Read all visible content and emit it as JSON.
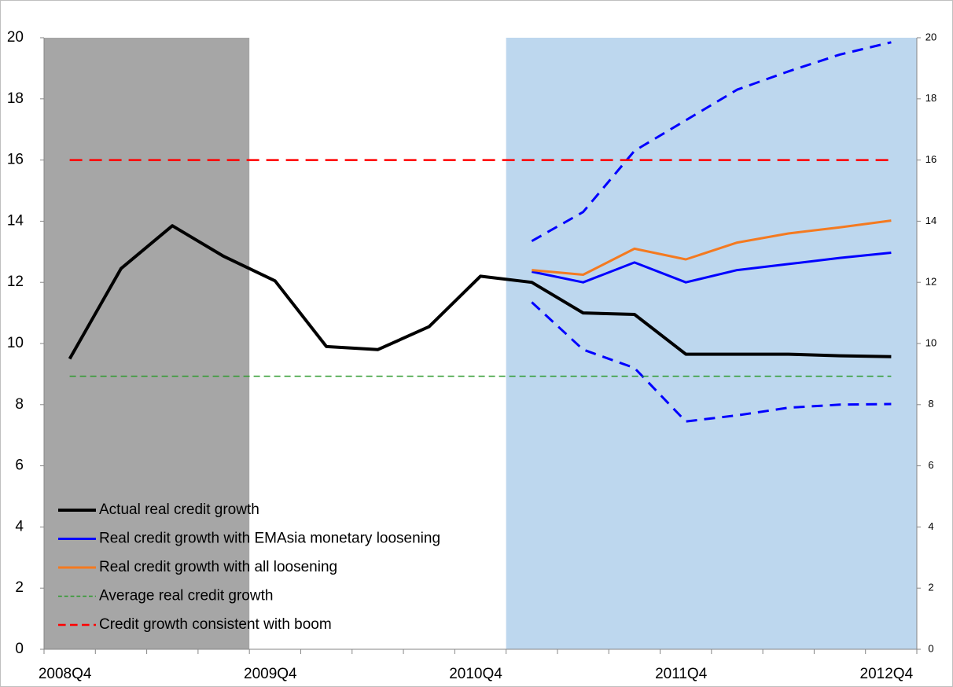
{
  "chart_data": {
    "type": "line",
    "categories": [
      "2008Q4",
      null,
      null,
      null,
      "2009Q4",
      null,
      null,
      null,
      "2010Q4",
      null,
      null,
      null,
      "2011Q4",
      null,
      null,
      null,
      "2012Q4"
    ],
    "ylim": [
      0,
      20
    ],
    "yticks": [
      0,
      2,
      4,
      6,
      8,
      10,
      12,
      14,
      16,
      18,
      20
    ],
    "y2lim": [
      0,
      20
    ],
    "y2ticks": [
      0,
      2,
      4,
      6,
      8,
      10,
      12,
      14,
      16,
      18,
      20
    ],
    "legend": "lower left",
    "shaded_regions": [
      {
        "start": 0,
        "end": 3,
        "color": "#a6a6a6"
      },
      {
        "start": 9,
        "end": 16,
        "color": "#bdd7ee"
      }
    ],
    "series": [
      {
        "color": "#0000ff",
        "dash": "14,9",
        "width": 3,
        "values": [
          null,
          null,
          null,
          null,
          null,
          null,
          null,
          null,
          null,
          13.35,
          14.3,
          16.3,
          17.3,
          18.3,
          18.9,
          19.45,
          19.85
        ]
      },
      {
        "color": "#0000ff",
        "dash": "14,9",
        "width": 3,
        "values": [
          null,
          null,
          null,
          null,
          null,
          null,
          null,
          null,
          null,
          11.35,
          9.8,
          9.2,
          7.45,
          7.65,
          7.9,
          8.0,
          8.02
        ]
      },
      {
        "name": "Actual real credit growth",
        "color": "#000000",
        "width": 4,
        "values": [
          9.5,
          12.45,
          13.85,
          12.85,
          12.05,
          9.9,
          9.8,
          10.55,
          12.2,
          12.0,
          11.0,
          10.95,
          9.65,
          9.65,
          9.65,
          9.6,
          9.57
        ]
      },
      {
        "name": "Real credit growth with EMAsia monetary loosening",
        "color": "#0000ff",
        "width": 3,
        "values": [
          null,
          null,
          null,
          null,
          null,
          null,
          null,
          null,
          null,
          12.35,
          12.0,
          12.65,
          12.0,
          12.4,
          12.6,
          12.8,
          12.97
        ]
      },
      {
        "name": "Real credit growth with all loosening",
        "color": "#f47a20",
        "width": 3,
        "values": [
          null,
          null,
          null,
          null,
          null,
          null,
          null,
          null,
          null,
          12.4,
          12.25,
          13.1,
          12.75,
          13.3,
          13.6,
          13.8,
          14.02
        ]
      },
      {
        "name": "Average real credit growth",
        "color": "#2e9a2e",
        "dash": "8,5",
        "width": 1.5,
        "values": [
          8.93,
          8.93,
          8.93,
          8.93,
          8.93,
          8.93,
          8.93,
          8.93,
          8.93,
          8.93,
          8.93,
          8.93,
          8.93,
          8.93,
          8.93,
          8.93,
          8.93
        ]
      },
      {
        "name": "Credit growth consistent with boom",
        "color": "#ff0000",
        "dash": "16,9",
        "width": 2.5,
        "values": [
          16,
          16,
          16,
          16,
          16,
          16,
          16,
          16,
          16,
          16,
          16,
          16,
          16,
          16,
          16,
          16,
          16
        ]
      }
    ]
  }
}
